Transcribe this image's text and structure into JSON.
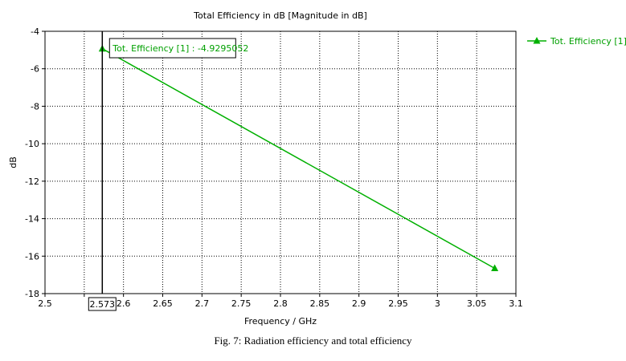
{
  "chart_data": {
    "type": "line",
    "title": "Total Efficiency in dB [Magnitude in dB]",
    "xlabel": "Frequency / GHz",
    "ylabel": "dB",
    "xlim": [
      2.5,
      3.1
    ],
    "ylim": [
      -18,
      -4
    ],
    "x_ticks": [
      2.5,
      2.55,
      2.6,
      2.65,
      2.7,
      2.75,
      2.8,
      2.85,
      2.9,
      2.95,
      3,
      3.05,
      3.1
    ],
    "x_tick_labels": [
      "2.5",
      "",
      "2.6",
      "2.65",
      "2.7",
      "2.75",
      "2.8",
      "2.85",
      "2.9",
      "2.95",
      "3",
      "3.05",
      "3.1"
    ],
    "y_ticks": [
      -18,
      -16,
      -14,
      -12,
      -10,
      -8,
      -6,
      -4
    ],
    "grid": true,
    "legend_position": "top-right",
    "series": [
      {
        "name": "Tot. Efficiency [1]",
        "color": "#00b000",
        "marker": "triangle",
        "x": [
          2.573,
          3.073
        ],
        "y": [
          -4.9295052,
          -16.65
        ]
      }
    ],
    "marker_line": {
      "x": 2.573,
      "label": "2.573",
      "annotation": "Tot. Efficiency [1] : -4.9295052"
    }
  },
  "caption": "Fig. 7: Radiation efficiency and total efficiency"
}
